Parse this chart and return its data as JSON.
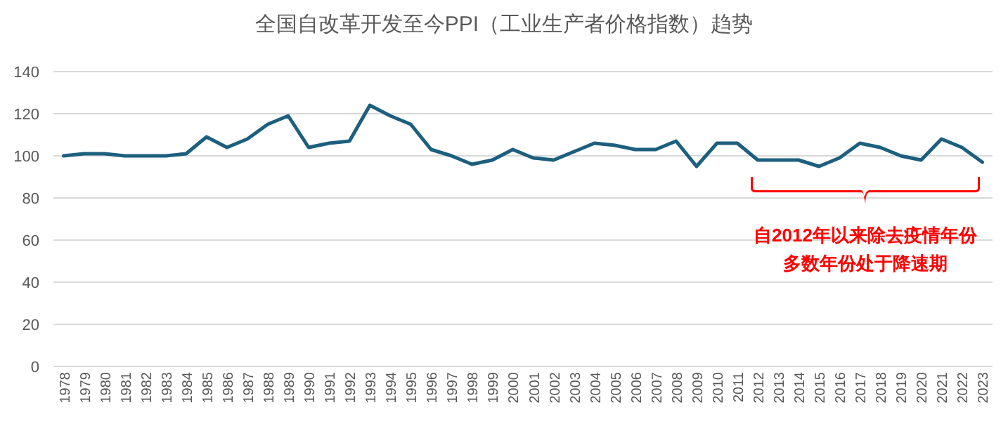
{
  "chart_data": {
    "type": "line",
    "title": "全国自改革开发至今PPI（工业生产者价格指数）趋势",
    "categories": [
      "1978",
      "1979",
      "1980",
      "1981",
      "1982",
      "1983",
      "1984",
      "1985",
      "1986",
      "1987",
      "1988",
      "1989",
      "1990",
      "1991",
      "1992",
      "1993",
      "1994",
      "1995",
      "1996",
      "1997",
      "1998",
      "1999",
      "2000",
      "2001",
      "2002",
      "2003",
      "2004",
      "2005",
      "2006",
      "2007",
      "2008",
      "2009",
      "2010",
      "2011",
      "2012",
      "2013",
      "2014",
      "2015",
      "2016",
      "2017",
      "2018",
      "2019",
      "2020",
      "2021",
      "2022",
      "2023"
    ],
    "series": [
      {
        "color": "#1c5f7e",
        "values": [
          100,
          101,
          101,
          100,
          100,
          100,
          101,
          109,
          104,
          108,
          115,
          119,
          104,
          106,
          107,
          124,
          119,
          115,
          103,
          100,
          96,
          98,
          103,
          99,
          98,
          102,
          106,
          105,
          103,
          103,
          107,
          95,
          106,
          106,
          98,
          98,
          98,
          95,
          99,
          106,
          104,
          100,
          98,
          108,
          104,
          97
        ]
      }
    ],
    "ylim": [
      0,
      140
    ],
    "yticks": [
      0,
      20,
      40,
      60,
      80,
      100,
      120,
      140
    ],
    "grid": "y",
    "marker": "none",
    "line_style": "solid",
    "annotations": [
      "自2012年以来除去疫情年份",
      "多数年份处于降速期"
    ]
  }
}
